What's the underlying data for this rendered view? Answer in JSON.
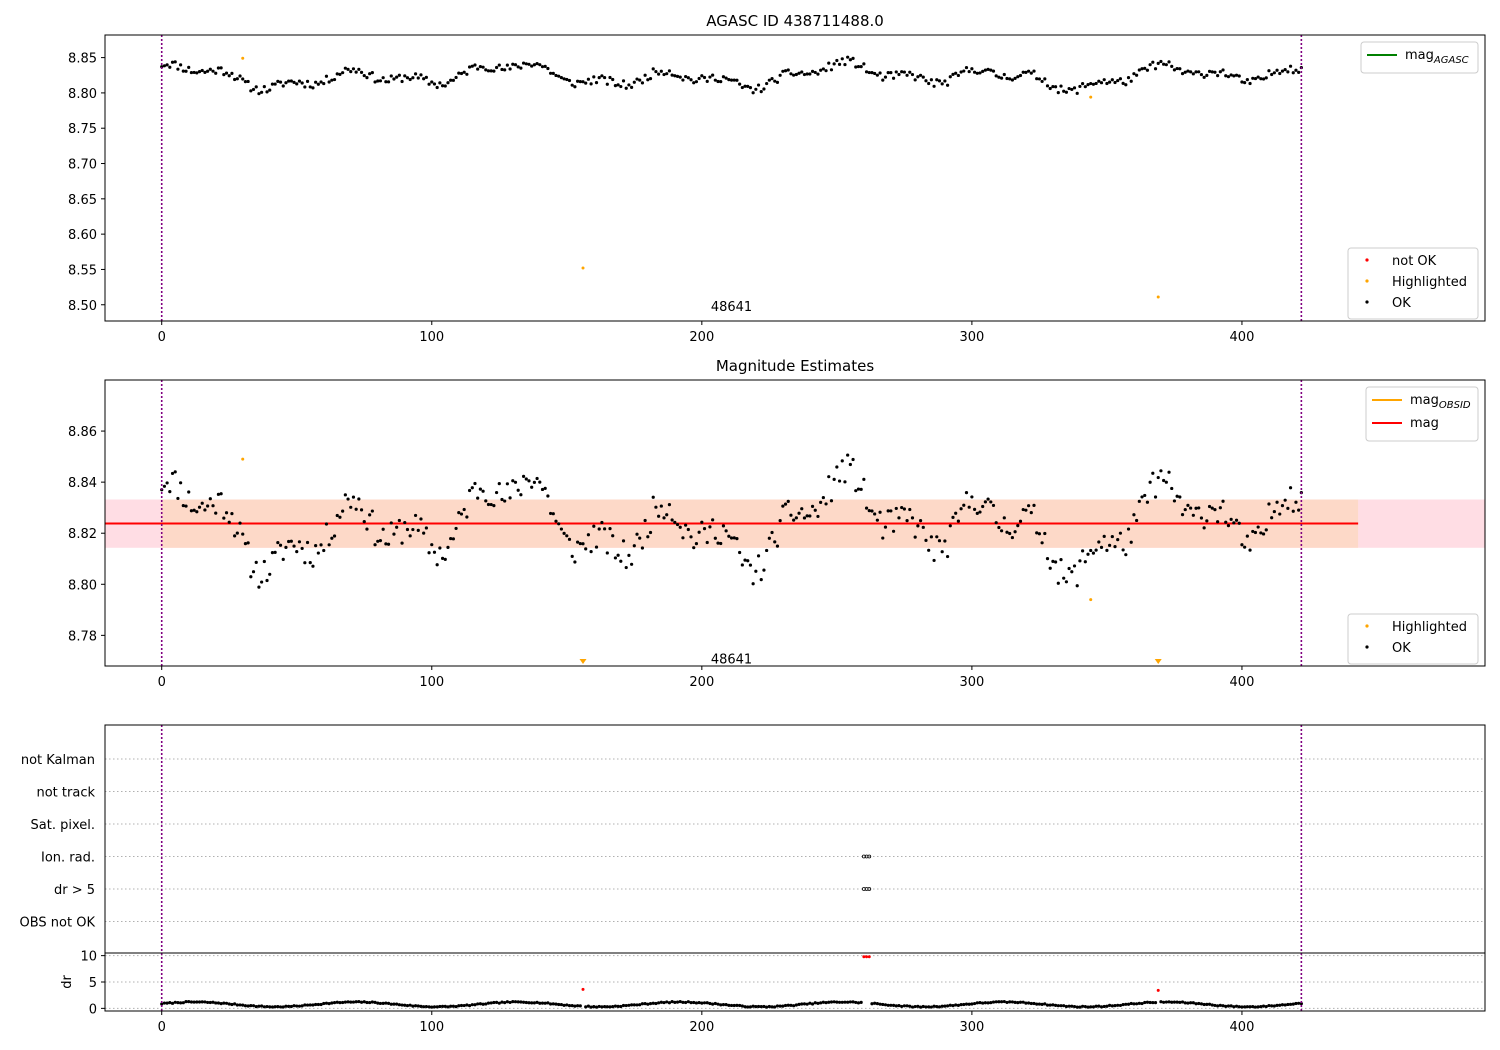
{
  "chart_data": [
    {
      "type": "scatter",
      "title": "AGASC ID 438711488.0",
      "xlim": [
        -21,
        490
      ],
      "ylim": [
        8.477,
        8.882
      ],
      "xticks": [
        0,
        100,
        200,
        300,
        400
      ],
      "xtick_labels": [
        "0",
        "100",
        "200",
        "300",
        "400"
      ],
      "yticks": [
        8.5,
        8.55,
        8.6,
        8.65,
        8.7,
        8.75,
        8.8,
        8.85
      ],
      "ytick_labels": [
        "8.50",
        "8.55",
        "8.60",
        "8.65",
        "8.70",
        "8.75",
        "8.80",
        "8.85"
      ],
      "vlines": [
        0,
        422
      ],
      "annotation": {
        "text": "48641",
        "x": 211,
        "y": 8.497
      },
      "legend_lines": [
        {
          "label": "mag",
          "sub": "AGASC",
          "color": "#008000"
        }
      ],
      "legend_points": [
        {
          "label": "not OK",
          "color": "#ff0000"
        },
        {
          "label": "Highlighted",
          "color": "#ffa500"
        },
        {
          "label": "OK",
          "color": "#000000"
        }
      ],
      "series": [
        {
          "name": "OK",
          "color": "#000000",
          "model": {
            "n": 423,
            "base": 8.8235,
            "waves": [
              [
                0.01,
                60,
                0.5
              ],
              [
                0.006,
                23,
                1.3
              ],
              [
                0.007,
                137,
                2.1
              ]
            ],
            "noise": 0.006,
            "seed": 11
          }
        },
        {
          "name": "Highlighted",
          "color": "#ffa500",
          "points": [
            [
              30,
              8.849
            ],
            [
              156,
              8.552
            ],
            [
              344,
              8.794
            ],
            [
              369,
              8.511
            ]
          ]
        }
      ]
    },
    {
      "type": "scatter",
      "title": "Magnitude Estimates",
      "xlim": [
        -21,
        490
      ],
      "ylim": [
        8.768,
        8.88
      ],
      "xticks": [
        0,
        100,
        200,
        300,
        400
      ],
      "xtick_labels": [
        "0",
        "100",
        "200",
        "300",
        "400"
      ],
      "yticks": [
        8.78,
        8.8,
        8.82,
        8.84,
        8.86
      ],
      "ytick_labels": [
        "8.78",
        "8.80",
        "8.82",
        "8.84",
        "8.86"
      ],
      "vlines": [
        0,
        422
      ],
      "annotation": {
        "text": "48641",
        "x": 211,
        "y": 8.7705
      },
      "mag": {
        "value": 8.8238,
        "range": [
          -21,
          443
        ]
      },
      "band_outer": {
        "ymin": 8.8143,
        "ymax": 8.8332,
        "color": "#ffdde4"
      },
      "band_inner": {
        "xmin": 0,
        "xmax": 443,
        "ymin": 8.8143,
        "ymax": 8.8332,
        "color": "#fdd9c8"
      },
      "legend_lines": [
        {
          "label": "mag",
          "sub": "OBSID",
          "color": "#ffa500"
        },
        {
          "label": "mag",
          "sub": "",
          "color": "#ff0000"
        }
      ],
      "legend_points": [
        {
          "label": "Highlighted",
          "color": "#ffa500"
        },
        {
          "label": "OK",
          "color": "#000000"
        }
      ],
      "series": [
        {
          "name": "OK",
          "color": "#000000",
          "model": {
            "n": 423,
            "base": 8.8235,
            "waves": [
              [
                0.01,
                60,
                0.5
              ],
              [
                0.006,
                23,
                1.3
              ],
              [
                0.007,
                137,
                2.1
              ]
            ],
            "noise": 0.006,
            "seed": 11
          }
        },
        {
          "name": "Highlighted",
          "color": "#ffa500",
          "points": [
            [
              30,
              8.849
            ],
            [
              344,
              8.794
            ]
          ]
        }
      ],
      "offscale_markers": [
        156,
        369
      ]
    },
    {
      "type": "scatter",
      "title": "",
      "xlim": [
        -21,
        490
      ],
      "categories": [
        "not Kalman",
        "not track",
        "Sat. pixel.",
        "Ion. rad.",
        "dr > 5",
        "OBS not OK"
      ],
      "flagged": [
        {
          "category": "Ion. rad.",
          "x": [
            260,
            261,
            262
          ]
        },
        {
          "category": "dr > 5",
          "x": [
            260,
            261,
            262
          ]
        }
      ],
      "vlines": [
        0,
        422
      ]
    },
    {
      "type": "scatter",
      "title": "",
      "ylabel": "dr",
      "xlim": [
        -21,
        490
      ],
      "ylim": [
        -0.5,
        10.5
      ],
      "xticks": [
        0,
        100,
        200,
        300,
        400
      ],
      "xtick_labels": [
        "0",
        "100",
        "200",
        "300",
        "400"
      ],
      "yticks": [
        0,
        5,
        10
      ],
      "ytick_labels": [
        "0",
        "5",
        "10"
      ],
      "vlines": [
        0,
        422
      ],
      "series": [
        {
          "name": "OK",
          "color": "#000000",
          "model": {
            "n": 423,
            "base": 0.75,
            "waves": [
              [
                0.45,
                60,
                0.3
              ]
            ],
            "noise": 0.1,
            "seed": 7,
            "skip": [
              156,
              260,
              261,
              262,
              369
            ]
          }
        },
        {
          "name": "not OK",
          "color": "#ff0000",
          "points": [
            [
              156,
              3.6
            ],
            [
              260,
              9.8
            ],
            [
              261,
              9.8
            ],
            [
              262,
              9.8
            ],
            [
              369,
              3.4
            ]
          ]
        }
      ]
    }
  ]
}
